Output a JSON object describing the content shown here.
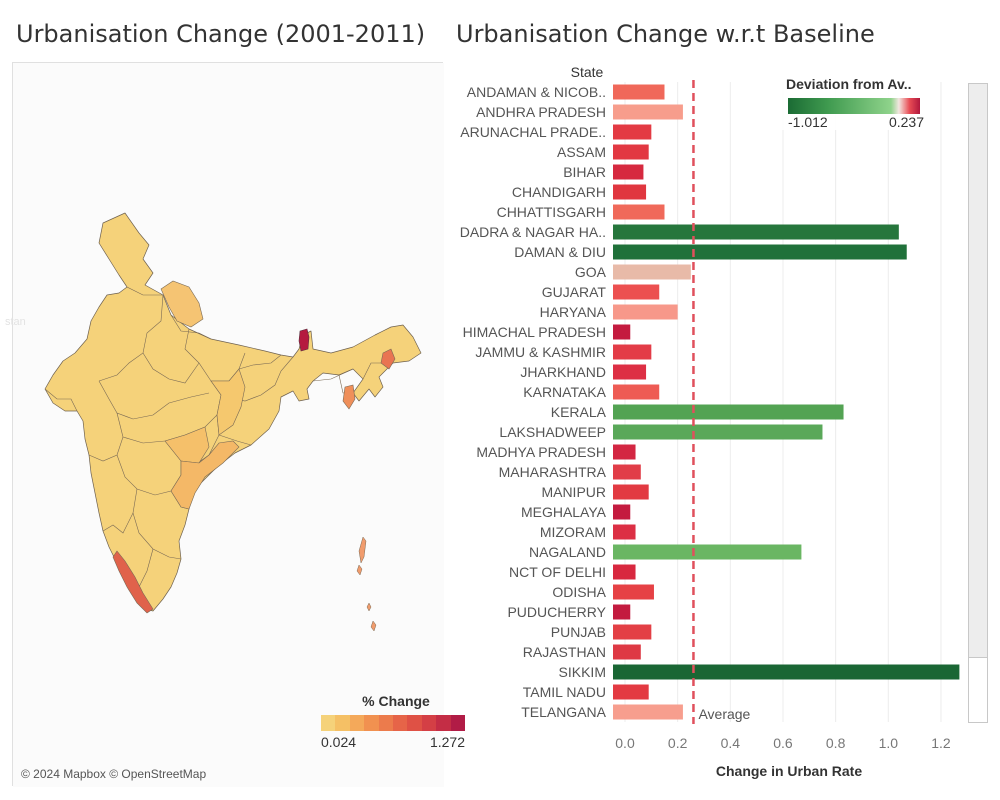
{
  "map": {
    "title": "Urbanisation Change (2001-2011)",
    "legend_title": "% Change",
    "legend_min": "0.024",
    "legend_max": "1.272",
    "legend_colors": [
      "#f5d27a",
      "#f5c065",
      "#f4a95a",
      "#f19150",
      "#ec7b4c",
      "#e66448",
      "#df5145",
      "#d43f45",
      "#c42d45",
      "#b11c46"
    ],
    "attribution": "© 2024 Mapbox © OpenStreetMap",
    "background_labels": [
      "stan"
    ],
    "region_colors": {
      "mainland": "#f5d27a",
      "up": "#f5c473",
      "chhattisgarh": "#f5c86e",
      "telangana": "#f5c06a",
      "andhra": "#f4b867",
      "kerala": "#e0624b",
      "sikkim": "#b5193f",
      "nagaland": "#e97452",
      "mizoram": "#ef8f5a",
      "islands": "#f19c6d"
    }
  },
  "bars": {
    "title": "Urbanisation Change w.r.t Baseline",
    "column_header": "State",
    "average_label": "Average",
    "scroll": "scrollbar"
  },
  "legend": {
    "title": "Deviation from Av..",
    "min": "-1.012",
    "max": "0.237"
  },
  "chart_data": {
    "type": "bar",
    "orientation": "horizontal",
    "title": "Urbanisation Change w.r.t Baseline",
    "xlabel": "Change in Urban Rate",
    "ylabel": "State",
    "xlim": [
      -0.05,
      1.32
    ],
    "ticks": [
      0.0,
      0.2,
      0.4,
      0.6,
      0.8,
      1.0,
      1.2
    ],
    "tick_labels": [
      "0.0",
      "0.2",
      "0.4",
      "0.6",
      "0.8",
      "1.0",
      "1.2"
    ],
    "reference_line": {
      "label": "Average",
      "value": 0.26
    },
    "categories": [
      "ANDAMAN & NICOB..",
      "ANDHRA PRADESH",
      "ARUNACHAL PRADE..",
      "ASSAM",
      "BIHAR",
      "CHANDIGARH",
      "CHHATTISGARH",
      "DADRA & NAGAR HA..",
      "DAMAN & DIU",
      "GOA",
      "GUJARAT",
      "HARYANA",
      "HIMACHAL PRADESH",
      "JAMMU & KASHMIR",
      "JHARKHAND",
      "KARNATAKA",
      "KERALA",
      "LAKSHADWEEP",
      "MADHYA PRADESH",
      "MAHARASHTRA",
      "MANIPUR",
      "MEGHALAYA",
      "MIZORAM",
      "NAGALAND",
      "NCT OF DELHI",
      "ODISHA",
      "PUDUCHERRY",
      "PUNJAB",
      "RAJASTHAN",
      "SIKKIM",
      "TAMIL NADU",
      "TELANGANA"
    ],
    "values": [
      0.15,
      0.22,
      0.1,
      0.09,
      0.07,
      0.08,
      0.15,
      1.04,
      1.07,
      0.25,
      0.13,
      0.2,
      0.02,
      0.1,
      0.08,
      0.13,
      0.83,
      0.75,
      0.04,
      0.06,
      0.09,
      0.02,
      0.04,
      0.67,
      0.04,
      0.11,
      0.02,
      0.1,
      0.06,
      1.27,
      0.09,
      0.22
    ],
    "colors": [
      "#f0685a",
      "#f79d8c",
      "#e33a43",
      "#e23842",
      "#d6293f",
      "#e0363f",
      "#f0695a",
      "#26763c",
      "#20713a",
      "#e8baa8",
      "#ec5050",
      "#f7988a",
      "#c41b3f",
      "#e33c47",
      "#dd2f44",
      "#ee5b54",
      "#53a353",
      "#5aa859",
      "#d32642",
      "#e13d48",
      "#e23a42",
      "#c41b3f",
      "#dc2f44",
      "#6ab663",
      "#d8283f",
      "#e64145",
      "#c31b3f",
      "#e33f45",
      "#de3944",
      "#1a6634",
      "#e33a42",
      "#f79e8e"
    ]
  }
}
